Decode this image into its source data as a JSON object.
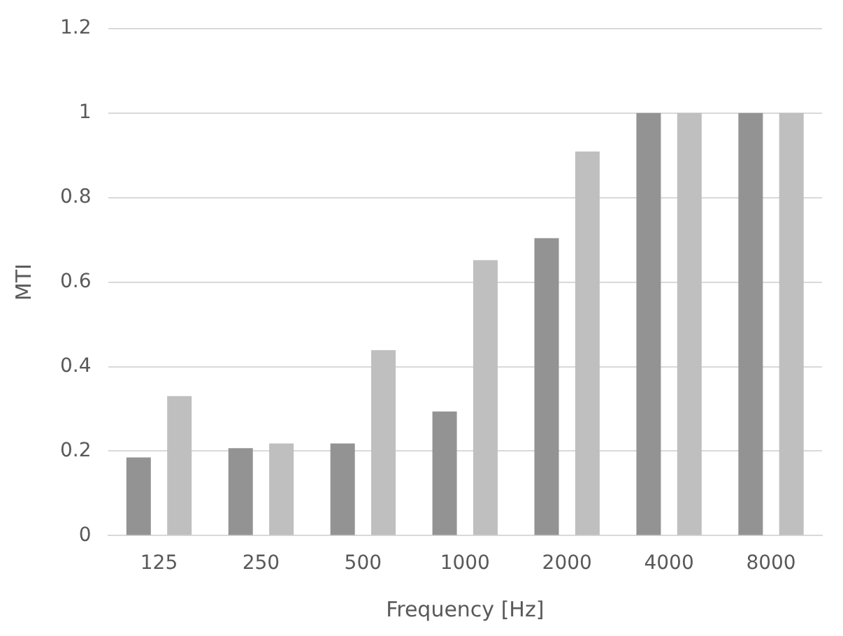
{
  "chart_data": {
    "type": "bar",
    "xlabel": "Frequency [Hz]",
    "ylabel": "MTI",
    "categories": [
      "125",
      "250",
      "500",
      "1000",
      "2000",
      "4000",
      "8000"
    ],
    "series": [
      {
        "color": "#939393",
        "values": [
          0.185,
          0.207,
          0.218,
          0.294,
          0.704,
          1,
          1
        ]
      },
      {
        "color": "#bfbfbf",
        "values": [
          0.33,
          0.218,
          0.439,
          0.652,
          0.909,
          1,
          1
        ]
      }
    ],
    "ylim": [
      0,
      1.2
    ],
    "yticks": [
      0,
      0.2,
      0.4,
      0.6,
      0.8,
      1,
      1.2
    ],
    "grid": "y",
    "legend": false
  }
}
